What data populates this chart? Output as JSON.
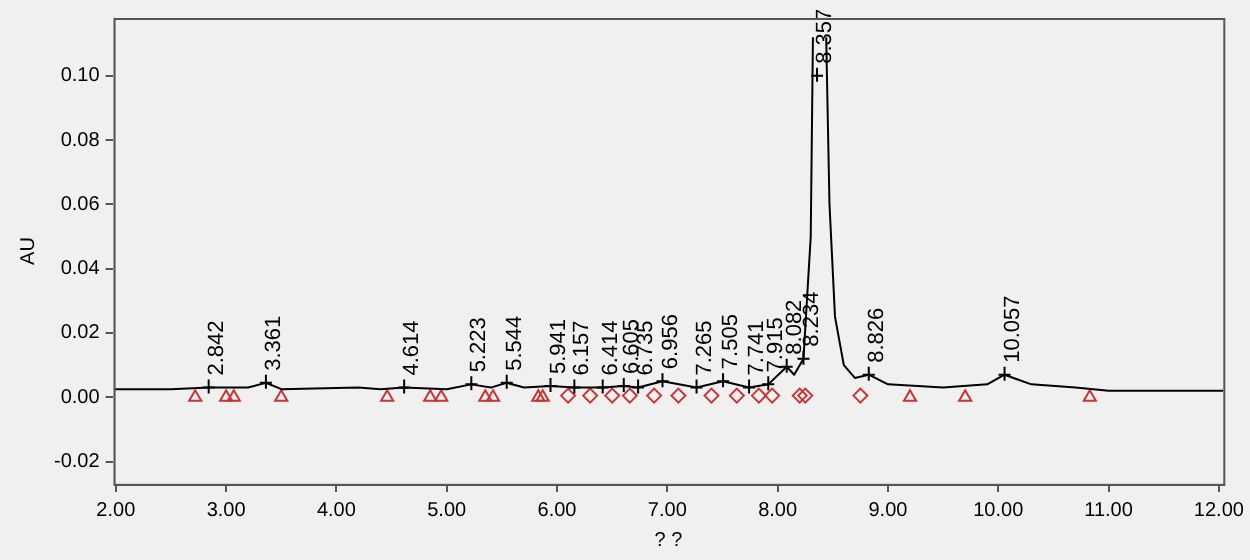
{
  "chart_data": {
    "type": "line",
    "xlabel": "? ?",
    "ylabel": "AU",
    "xlim": [
      1.98,
      12.04
    ],
    "ylim": [
      -0.027,
      0.118
    ],
    "xticks": [
      {
        "value": 2,
        "label": "2.00"
      },
      {
        "value": 3,
        "label": "3.00"
      },
      {
        "value": 4,
        "label": "4.00"
      },
      {
        "value": 5,
        "label": "5.00"
      },
      {
        "value": 6,
        "label": "6.00"
      },
      {
        "value": 7,
        "label": "7.00"
      },
      {
        "value": 8,
        "label": "8.00"
      },
      {
        "value": 9,
        "label": "9.00"
      },
      {
        "value": 10,
        "label": "10.00"
      },
      {
        "value": 11,
        "label": "11.00"
      },
      {
        "value": 12,
        "label": "12.00"
      }
    ],
    "yticks": [
      {
        "value": -0.02,
        "label": "-0.02"
      },
      {
        "value": 0,
        "label": "0.00"
      },
      {
        "value": 0.02,
        "label": "0.02"
      },
      {
        "value": 0.04,
        "label": "0.04"
      },
      {
        "value": 0.06,
        "label": "0.06"
      },
      {
        "value": 0.08,
        "label": "0.08"
      },
      {
        "value": 0.1,
        "label": "0.10"
      }
    ],
    "grid": false,
    "legend": false,
    "series": [
      {
        "color": "#000000",
        "marker": "none",
        "x": [
          1.98,
          2.5,
          2.842,
          3.2,
          3.361,
          3.5,
          4.2,
          4.4,
          4.614,
          5.0,
          5.223,
          5.4,
          5.544,
          5.7,
          5.941,
          6.157,
          6.414,
          6.605,
          6.735,
          6.956,
          7.265,
          7.505,
          7.741,
          7.915,
          8.082,
          8.15,
          8.234,
          8.3,
          8.32,
          8.357,
          8.44,
          8.47,
          8.52,
          8.6,
          8.7,
          8.826,
          9.0,
          9.5,
          9.9,
          10.057,
          10.3,
          10.7,
          11.0,
          12.04
        ],
        "values": [
          0.0025,
          0.0025,
          0.003,
          0.003,
          0.0045,
          0.0025,
          0.003,
          0.0025,
          0.003,
          0.0025,
          0.004,
          0.003,
          0.0045,
          0.003,
          0.0035,
          0.003,
          0.003,
          0.0035,
          0.003,
          0.005,
          0.003,
          0.005,
          0.003,
          0.004,
          0.0095,
          0.007,
          0.012,
          0.05,
          0.112,
          null,
          0.112,
          0.06,
          0.025,
          0.01,
          0.006,
          0.007,
          0.004,
          0.003,
          0.004,
          0.007,
          0.004,
          0.003,
          0.002,
          0.002
        ]
      },
      {
        "type": "scatter",
        "color": "#cc3333",
        "marker": "triangle",
        "x": [
          2.72,
          3.0,
          3.07,
          3.5,
          4.46,
          4.85,
          4.95,
          5.35,
          5.42,
          5.83,
          5.87,
          9.2,
          9.7,
          10.83
        ],
        "values": [
          0.0,
          0.0,
          0.0,
          0.0,
          0.0,
          0.0,
          0.0,
          0.0,
          0.0,
          0.0,
          0.0,
          0.0,
          0.0,
          0.0
        ]
      },
      {
        "type": "scatter",
        "color": "#cc3333",
        "marker": "diamond",
        "x": [
          6.1,
          6.3,
          6.5,
          6.66,
          6.88,
          7.1,
          7.4,
          7.63,
          7.83,
          7.95,
          8.2,
          8.25,
          8.75
        ],
        "values": [
          0.0005,
          0.0005,
          0.0005,
          0.0005,
          0.0005,
          0.0005,
          0.0005,
          0.0005,
          0.0005,
          0.0005,
          0.0005,
          0.0005,
          0.0005
        ]
      }
    ],
    "annotations": [
      {
        "text": "2.842",
        "x": 2.842,
        "y": 0.003
      },
      {
        "text": "3.361",
        "x": 3.361,
        "y": 0.0045
      },
      {
        "text": "4.614",
        "x": 4.614,
        "y": 0.003
      },
      {
        "text": "5.223",
        "x": 5.223,
        "y": 0.004
      },
      {
        "text": "5.544",
        "x": 5.544,
        "y": 0.0045
      },
      {
        "text": "5.941",
        "x": 5.941,
        "y": 0.0035
      },
      {
        "text": "6.157",
        "x": 6.157,
        "y": 0.003
      },
      {
        "text": "6.414",
        "x": 6.414,
        "y": 0.003
      },
      {
        "text": "6.605",
        "x": 6.605,
        "y": 0.0035
      },
      {
        "text": "6.735",
        "x": 6.735,
        "y": 0.003
      },
      {
        "text": "6.956",
        "x": 6.956,
        "y": 0.005
      },
      {
        "text": "7.265",
        "x": 7.265,
        "y": 0.003
      },
      {
        "text": "7.505",
        "x": 7.505,
        "y": 0.005
      },
      {
        "text": "7.741",
        "x": 7.741,
        "y": 0.003
      },
      {
        "text": "7.915",
        "x": 7.915,
        "y": 0.004
      },
      {
        "text": "8.082",
        "x": 8.082,
        "y": 0.0095
      },
      {
        "text": "8.234",
        "x": 8.234,
        "y": 0.012
      },
      {
        "text": "8.357",
        "x": 8.357,
        "y": 0.1
      },
      {
        "text": "8.826",
        "x": 8.826,
        "y": 0.007
      },
      {
        "text": "10.057",
        "x": 10.057,
        "y": 0.007
      }
    ]
  }
}
